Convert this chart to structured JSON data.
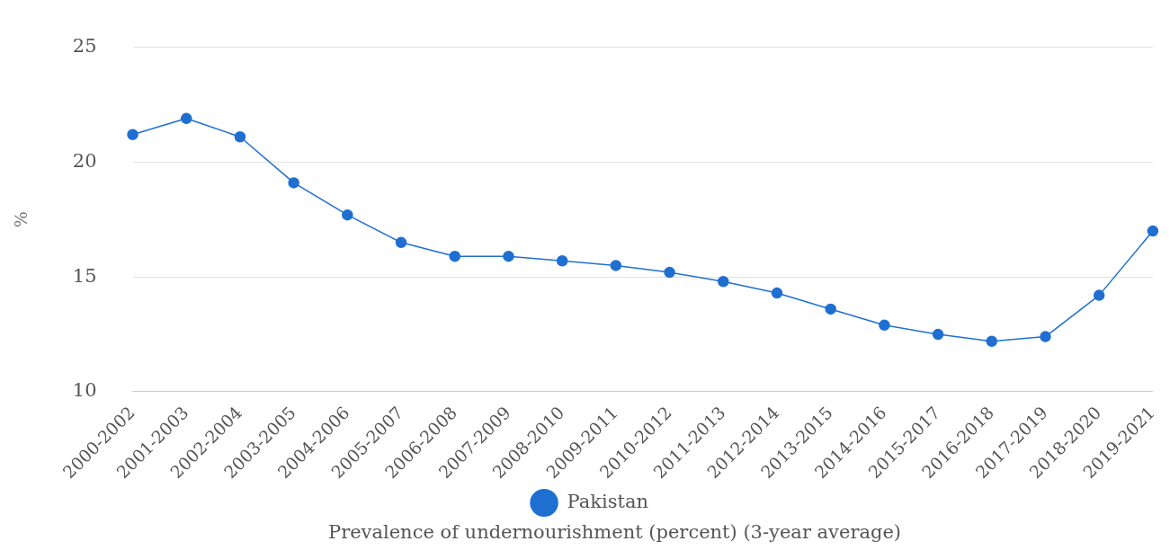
{
  "chart_data": {
    "type": "line",
    "ylabel": "%",
    "categories": [
      "2000-2002",
      "2001-2003",
      "2002-2004",
      "2003-2005",
      "2004-2006",
      "2005-2007",
      "2006-2008",
      "2007-2009",
      "2008-2010",
      "2009-2011",
      "2010-2012",
      "2011-2013",
      "2012-2014",
      "2013-2015",
      "2014-2016",
      "2015-2017",
      "2016-2018",
      "2017-2019",
      "2018-2020",
      "2019-2021"
    ],
    "series": [
      {
        "name": "Pakistan",
        "color": "#1f6fd1",
        "values": [
          21.2,
          21.9,
          21.1,
          19.1,
          17.7,
          16.5,
          15.9,
          15.9,
          15.7,
          15.5,
          15.2,
          14.8,
          14.3,
          13.6,
          12.9,
          12.5,
          12.2,
          12.4,
          14.2,
          17.0
        ]
      }
    ],
    "ylim": [
      10,
      25
    ],
    "yticks": [
      10,
      15,
      20,
      25
    ],
    "grid": "y",
    "legend": "bottom",
    "marker": "circle",
    "line_style": "solid",
    "annotations": [
      "Prevalence of undernourishment (percent) (3-year average)"
    ]
  }
}
